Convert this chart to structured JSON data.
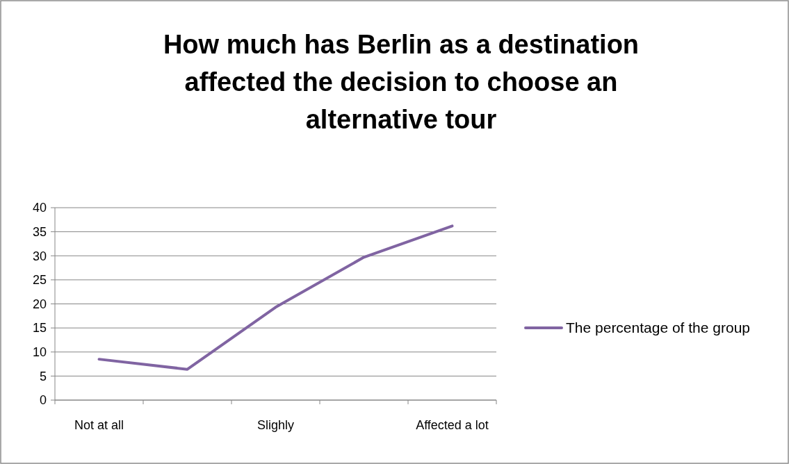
{
  "chart_data": {
    "type": "line",
    "title": "How much has Berlin as a destination affected the decision to choose an alternative tour",
    "categories": [
      "Not at all",
      null,
      "Slighly",
      null,
      "Affected a lot"
    ],
    "series": [
      {
        "name": "The percentage of the group",
        "color": "#8064a2",
        "values": [
          8.5,
          6.4,
          19.3,
          29.7,
          36.2
        ]
      }
    ],
    "ylim": [
      0,
      40
    ],
    "yticks": [
      0,
      5,
      10,
      15,
      20,
      25,
      30,
      35,
      40
    ],
    "grid": "y",
    "legend": "right",
    "marker": "none",
    "line_style": "solid"
  }
}
